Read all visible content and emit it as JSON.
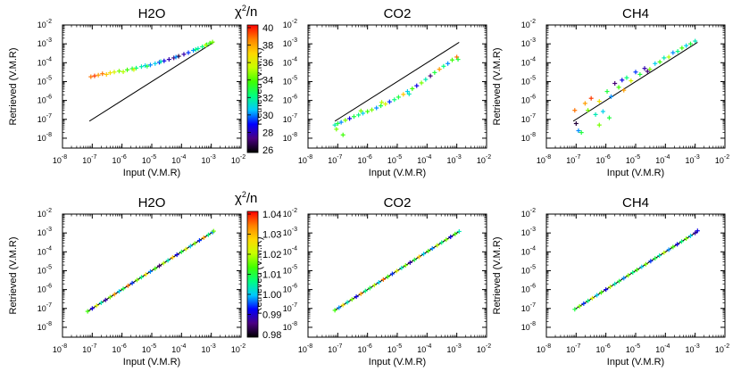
{
  "figure": {
    "axis_xlabel": "Input (V.M.R)",
    "axis_ylabel": "Retrieved (V.M.R)",
    "colorbar_label": "χ²/n",
    "colorbar_label_base": "χ",
    "colorbar_label_sup": "2",
    "colorbar_label_tail": "/n",
    "colormap": [
      "#000000",
      "#4b0082",
      "#0000ff",
      "#00c8ff",
      "#00ff80",
      "#40ff00",
      "#c8ff00",
      "#ffd700",
      "#ff8000",
      "#ff0000"
    ]
  },
  "chart_data": [
    {
      "type": "scatter",
      "row": 0,
      "title": "H2O",
      "xscale": "log",
      "yscale": "log",
      "xlim": [
        1e-08,
        0.01
      ],
      "ylim": [
        3e-09,
        0.01
      ],
      "xticks": [
        1e-08,
        1e-07,
        1e-06,
        1e-05,
        0.0001,
        0.001,
        0.01
      ],
      "yticks": [
        1e-08,
        1e-07,
        1e-06,
        1e-05,
        0.0001,
        0.001,
        0.01
      ],
      "reference_line": {
        "x": [
          8e-08,
          0.0012
        ],
        "y": [
          8e-08,
          0.0012
        ]
      },
      "points": [
        [
          9e-08,
          1.8e-05,
          0.9
        ],
        [
          1.2e-07,
          2e-05,
          0.95
        ],
        [
          1.6e-07,
          2.2e-05,
          0.85
        ],
        [
          2.2e-07,
          2.6e-05,
          0.9
        ],
        [
          3e-07,
          2.4e-05,
          0.8
        ],
        [
          4e-07,
          2.9e-05,
          0.75
        ],
        [
          5.5e-07,
          3.2e-05,
          0.7
        ],
        [
          8e-07,
          3.6e-05,
          0.6
        ],
        [
          1.1e-06,
          3.3e-05,
          0.65
        ],
        [
          1.5e-06,
          4.2e-05,
          0.55
        ],
        [
          2.2e-06,
          4.8e-05,
          0.5
        ],
        [
          3e-06,
          5.2e-05,
          0.45
        ],
        [
          4.5e-06,
          6.2e-05,
          0.4
        ],
        [
          6e-06,
          7e-05,
          0.35
        ],
        [
          9e-06,
          7.6e-05,
          0.3
        ],
        [
          1.3e-05,
          9e-05,
          0.35
        ],
        [
          1.8e-05,
          0.000105,
          0.25
        ],
        [
          2.6e-05,
          0.000125,
          0.2
        ],
        [
          3.8e-05,
          0.00015,
          0.15
        ],
        [
          5.5e-05,
          0.00018,
          0.1
        ],
        [
          8e-05,
          0.00022,
          0.05
        ],
        [
          0.00012,
          0.00028,
          0.15
        ],
        [
          0.00017,
          0.00034,
          0.25
        ],
        [
          0.00025,
          0.00045,
          0.3
        ],
        [
          0.00036,
          0.00056,
          0.4
        ],
        [
          0.0005,
          0.0007,
          0.45
        ],
        [
          0.0007,
          0.0009,
          0.5
        ],
        [
          0.0009,
          0.0011,
          0.55
        ],
        [
          0.0011,
          0.00125,
          0.6
        ],
        [
          2.5e-06,
          4.3e-05,
          0.7
        ],
        [
          7e-06,
          6.5e-05,
          0.5
        ],
        [
          2e-05,
          0.000115,
          0.4
        ],
        [
          6.5e-05,
          0.0002,
          0.3
        ],
        [
          0.0003,
          0.0005,
          0.45
        ],
        [
          0.00065,
          0.00085,
          0.65
        ]
      ]
    },
    {
      "type": "scatter",
      "row": 0,
      "title": "CO2",
      "xscale": "log",
      "yscale": "log",
      "xlim": [
        1e-08,
        0.01
      ],
      "ylim": [
        3e-09,
        0.01
      ],
      "xticks": [
        1e-08,
        1e-07,
        1e-06,
        1e-05,
        0.0001,
        0.001,
        0.01
      ],
      "yticks": [
        1e-08,
        1e-07,
        1e-06,
        1e-05,
        0.0001,
        0.001,
        0.01
      ],
      "reference_line": {
        "x": [
          8e-08,
          0.0012
        ],
        "y": [
          8e-08,
          0.0012
        ]
      },
      "points": [
        [
          8e-08,
          5e-08,
          0.4
        ],
        [
          1e-07,
          6e-08,
          0.5
        ],
        [
          1.3e-07,
          7e-08,
          0.3
        ],
        [
          1.8e-07,
          9e-08,
          0.6
        ],
        [
          2.5e-07,
          1.1e-07,
          0.2
        ],
        [
          3.5e-07,
          1.4e-07,
          0.5
        ],
        [
          5e-07,
          1.7e-07,
          0.45
        ],
        [
          7e-07,
          2.1e-07,
          0.35
        ],
        [
          1e-06,
          2.6e-07,
          0.55
        ],
        [
          1.4e-06,
          3.2e-07,
          0.6
        ],
        [
          2e-06,
          4e-07,
          0.3
        ],
        [
          2.8e-06,
          5.2e-07,
          0.5
        ],
        [
          4e-06,
          6.5e-07,
          0.7
        ],
        [
          5.5e-06,
          8.5e-07,
          0.25
        ],
        [
          8e-06,
          1.1e-06,
          0.45
        ],
        [
          1.1e-05,
          1.5e-06,
          0.5
        ],
        [
          1.6e-05,
          2.1e-06,
          0.8
        ],
        [
          2.2e-05,
          3e-06,
          0.35
        ],
        [
          3.2e-05,
          4.2e-06,
          0.55
        ],
        [
          4.5e-05,
          6e-06,
          0.2
        ],
        [
          6.5e-05,
          8.5e-06,
          0.6
        ],
        [
          9e-05,
          1.3e-05,
          0.4
        ],
        [
          0.00013,
          2e-05,
          0.1
        ],
        [
          0.00018,
          3e-05,
          0.5
        ],
        [
          0.00026,
          4.5e-05,
          0.85
        ],
        [
          0.00036,
          6.5e-05,
          0.45
        ],
        [
          0.0005,
          9e-05,
          0.3
        ],
        [
          0.0007,
          0.00014,
          0.55
        ],
        [
          0.001,
          0.0002,
          0.9
        ],
        [
          0.0011,
          0.00015,
          0.5
        ],
        [
          9e-08,
          3e-08,
          0.6
        ],
        [
          1.5e-07,
          1.5e-08,
          0.55
        ],
        [
          6e-07,
          2.8e-07,
          0.6
        ],
        [
          3e-06,
          8e-07,
          0.65
        ],
        [
          2.5e-05,
          2.2e-06,
          0.4
        ]
      ]
    },
    {
      "type": "scatter",
      "row": 0,
      "title": "CH4",
      "xscale": "log",
      "yscale": "log",
      "xlim": [
        1e-08,
        0.01
      ],
      "ylim": [
        3e-09,
        0.01
      ],
      "xticks": [
        1e-08,
        1e-07,
        1e-06,
        1e-05,
        0.0001,
        0.001,
        0.01
      ],
      "yticks": [
        1e-08,
        1e-07,
        1e-06,
        1e-05,
        0.0001,
        0.001,
        0.01
      ],
      "reference_line": {
        "x": [
          8e-08,
          0.0012
        ],
        "y": [
          8e-08,
          0.0012
        ]
      },
      "points": [
        [
          9e-08,
          3e-07,
          0.9
        ],
        [
          1e-07,
          6e-08,
          0.05
        ],
        [
          1.2e-07,
          2.5e-08,
          0.3
        ],
        [
          1.5e-07,
          2e-08,
          0.5
        ],
        [
          2e-07,
          7e-07,
          0.85
        ],
        [
          2.5e-07,
          3e-07,
          0.6
        ],
        [
          3.2e-07,
          1.3e-06,
          0.95
        ],
        [
          4.5e-07,
          1.8e-07,
          0.4
        ],
        [
          6e-07,
          9e-07,
          0.75
        ],
        [
          8e-07,
          2.6e-07,
          0.35
        ],
        [
          1.1e-06,
          3e-06,
          0.5
        ],
        [
          1.5e-06,
          1.6e-06,
          0.3
        ],
        [
          2e-06,
          8e-06,
          0.1
        ],
        [
          2.7e-06,
          5e-06,
          0.55
        ],
        [
          3.5e-06,
          1.2e-05,
          0.2
        ],
        [
          5e-06,
          1.6e-05,
          0.45
        ],
        [
          7e-06,
          1.1e-05,
          0.7
        ],
        [
          1e-05,
          3.2e-05,
          0.25
        ],
        [
          1.4e-05,
          2.4e-05,
          0.5
        ],
        [
          2e-05,
          5e-05,
          0.15
        ],
        [
          3e-05,
          4.5e-05,
          0.6
        ],
        [
          4.5e-05,
          9e-05,
          0.35
        ],
        [
          6.5e-05,
          0.00011,
          0.55
        ],
        [
          9e-05,
          0.00018,
          0.4
        ],
        [
          0.00013,
          0.0002,
          0.65
        ],
        [
          0.00018,
          0.00034,
          0.3
        ],
        [
          0.00026,
          0.0004,
          0.45
        ],
        [
          0.00036,
          0.0006,
          0.55
        ],
        [
          0.0005,
          0.0008,
          0.35
        ],
        [
          0.0007,
          0.001,
          0.5
        ],
        [
          0.001,
          0.0014,
          0.4
        ],
        [
          6e-07,
          5e-08,
          0.6
        ],
        [
          1.3e-06,
          1.2e-07,
          0.5
        ],
        [
          4e-06,
          3.5e-06,
          0.85
        ],
        [
          2.5e-05,
          3.5e-05,
          0.1
        ]
      ]
    },
    {
      "type": "scatter",
      "row": 1,
      "title": "H2O",
      "xscale": "log",
      "yscale": "log",
      "xlim": [
        1e-08,
        0.01
      ],
      "ylim": [
        3e-09,
        0.01
      ],
      "xticks": [
        1e-08,
        1e-07,
        1e-06,
        1e-05,
        0.0001,
        0.001,
        0.01
      ],
      "yticks": [
        1e-08,
        1e-07,
        1e-06,
        1e-05,
        0.0001,
        0.001,
        0.01
      ],
      "reference_line": {
        "x": [
          7e-08,
          0.0012
        ],
        "y": [
          7e-08,
          0.0012
        ]
      },
      "points": [
        [
          7e-08,
          7e-08,
          0.55
        ],
        [
          1e-07,
          1e-07,
          0.2
        ],
        [
          1.4e-07,
          1.4e-07,
          0.7
        ],
        [
          2e-07,
          2e-07,
          0.4
        ],
        [
          2.8e-07,
          2.8e-07,
          0.15
        ],
        [
          4e-07,
          4e-07,
          0.6
        ],
        [
          5.6e-07,
          5.6e-07,
          0.85
        ],
        [
          8e-07,
          8e-07,
          0.35
        ],
        [
          1.1e-06,
          1.1e-06,
          0.5
        ],
        [
          1.6e-06,
          1.6e-06,
          0.9
        ],
        [
          2.2e-06,
          2.2e-06,
          0.25
        ],
        [
          3.2e-06,
          3.2e-06,
          0.6
        ],
        [
          4.5e-06,
          4.5e-06,
          0.45
        ],
        [
          6.3e-06,
          6.3e-06,
          0.75
        ],
        [
          9e-06,
          9e-06,
          0.3
        ],
        [
          1.3e-05,
          1.3e-05,
          0.55
        ],
        [
          1.8e-05,
          1.8e-05,
          0.1
        ],
        [
          2.5e-05,
          2.5e-05,
          0.65
        ],
        [
          3.5e-05,
          3.5e-05,
          0.4
        ],
        [
          5e-05,
          5e-05,
          0.8
        ],
        [
          7e-05,
          7e-05,
          0.2
        ],
        [
          0.0001,
          0.0001,
          0.5
        ],
        [
          0.00014,
          0.00014,
          0.7
        ],
        [
          0.0002,
          0.0002,
          0.35
        ],
        [
          0.00028,
          0.00028,
          0.6
        ],
        [
          0.0004,
          0.0004,
          0.25
        ],
        [
          0.00056,
          0.00056,
          0.85
        ],
        [
          0.0008,
          0.0008,
          0.45
        ],
        [
          0.0011,
          0.0011,
          0.3
        ],
        [
          0.0012,
          0.00125,
          0.6
        ]
      ]
    },
    {
      "type": "scatter",
      "row": 1,
      "title": "CO2",
      "xscale": "log",
      "yscale": "log",
      "xlim": [
        1e-08,
        0.01
      ],
      "ylim": [
        3e-09,
        0.01
      ],
      "xticks": [
        1e-08,
        1e-07,
        1e-06,
        1e-05,
        0.0001,
        0.001,
        0.01
      ],
      "yticks": [
        1e-08,
        1e-07,
        1e-06,
        1e-05,
        0.0001,
        0.001,
        0.01
      ],
      "reference_line": {
        "x": [
          8e-08,
          0.0012
        ],
        "y": [
          8e-08,
          0.0012
        ]
      },
      "points": [
        [
          8e-08,
          8e-08,
          0.55
        ],
        [
          1.1e-07,
          1.1e-07,
          0.3
        ],
        [
          1.5e-07,
          1.5e-07,
          0.75
        ],
        [
          2.1e-07,
          2.1e-07,
          0.4
        ],
        [
          3e-07,
          3e-07,
          0.6
        ],
        [
          4.2e-07,
          4.2e-07,
          0.2
        ],
        [
          6e-07,
          6e-07,
          0.85
        ],
        [
          8.5e-07,
          8.5e-07,
          0.45
        ],
        [
          1.2e-06,
          1.2e-06,
          0.5
        ],
        [
          1.7e-06,
          1.7e-06,
          0.65
        ],
        [
          2.4e-06,
          2.4e-06,
          0.35
        ],
        [
          3.4e-06,
          3.4e-06,
          0.9
        ],
        [
          4.8e-06,
          4.8e-06,
          0.55
        ],
        [
          6.8e-06,
          6.8e-06,
          0.25
        ],
        [
          9.6e-06,
          9.6e-06,
          0.7
        ],
        [
          1.4e-05,
          1.4e-05,
          0.4
        ],
        [
          1.9e-05,
          1.9e-05,
          0.6
        ],
        [
          2.7e-05,
          2.7e-05,
          0.15
        ],
        [
          3.8e-05,
          3.8e-05,
          0.5
        ],
        [
          5.4e-05,
          5.4e-05,
          0.8
        ],
        [
          7.7e-05,
          7.7e-05,
          0.35
        ],
        [
          0.00011,
          0.00011,
          0.55
        ],
        [
          0.00015,
          0.00015,
          0.3
        ],
        [
          0.00022,
          0.00022,
          0.65
        ],
        [
          0.00031,
          0.00031,
          0.45
        ],
        [
          0.00044,
          0.00044,
          0.6
        ],
        [
          0.00062,
          0.00062,
          0.2
        ],
        [
          0.00088,
          0.00088,
          0.55
        ],
        [
          0.0012,
          0.0012,
          0.4
        ]
      ]
    },
    {
      "type": "scatter",
      "row": 1,
      "title": "CH4",
      "xscale": "log",
      "yscale": "log",
      "xlim": [
        1e-08,
        0.01
      ],
      "ylim": [
        3e-09,
        0.01
      ],
      "xticks": [
        1e-08,
        1e-07,
        1e-06,
        1e-05,
        0.0001,
        0.001,
        0.01
      ],
      "yticks": [
        1e-08,
        1e-07,
        1e-06,
        1e-05,
        0.0001,
        0.001,
        0.01
      ],
      "reference_line": {
        "x": [
          9e-08,
          0.0012
        ],
        "y": [
          9e-08,
          0.0012
        ]
      },
      "points": [
        [
          9e-08,
          9e-08,
          0.5
        ],
        [
          1.3e-07,
          1.3e-07,
          0.6
        ],
        [
          1.8e-07,
          1.8e-07,
          0.25
        ],
        [
          2.5e-07,
          2.5e-07,
          0.45
        ],
        [
          3.5e-07,
          3.5e-07,
          0.7
        ],
        [
          5e-07,
          5e-07,
          0.35
        ],
        [
          7e-07,
          7e-07,
          0.55
        ],
        [
          1e-06,
          1e-06,
          0.2
        ],
        [
          1.4e-06,
          1.4e-06,
          0.65
        ],
        [
          2e-06,
          2e-06,
          0.4
        ],
        [
          2.8e-06,
          2.8e-06,
          0.5
        ],
        [
          4e-06,
          4e-06,
          0.3
        ],
        [
          5.6e-06,
          5.6e-06,
          0.6
        ],
        [
          8e-06,
          8e-06,
          0.45
        ],
        [
          1.1e-05,
          1.1e-05,
          0.55
        ],
        [
          1.6e-05,
          1.6e-05,
          0.35
        ],
        [
          2.2e-05,
          2.2e-05,
          0.6
        ],
        [
          3.2e-05,
          3.2e-05,
          0.25
        ],
        [
          4.5e-05,
          4.5e-05,
          0.5
        ],
        [
          6.3e-05,
          6.3e-05,
          0.4
        ],
        [
          9e-05,
          9e-05,
          0.65
        ],
        [
          0.00013,
          0.00013,
          0.3
        ],
        [
          0.00018,
          0.00018,
          0.55
        ],
        [
          0.00025,
          0.00025,
          0.2
        ],
        [
          0.00035,
          0.00035,
          0.45
        ],
        [
          0.0005,
          0.0005,
          0.6
        ],
        [
          0.0007,
          0.0007,
          0.35
        ],
        [
          0.001,
          0.001,
          0.15
        ],
        [
          0.0012,
          0.0013,
          0.2
        ]
      ]
    }
  ],
  "colorbars": [
    {
      "row": 0,
      "ticks": [
        "40",
        "38",
        "36",
        "34",
        "32",
        "30",
        "28",
        "26"
      ]
    },
    {
      "row": 1,
      "ticks": [
        "1.04",
        "1.03",
        "1.02",
        "1.01",
        "1.00",
        "0.99",
        "0.98"
      ]
    }
  ]
}
